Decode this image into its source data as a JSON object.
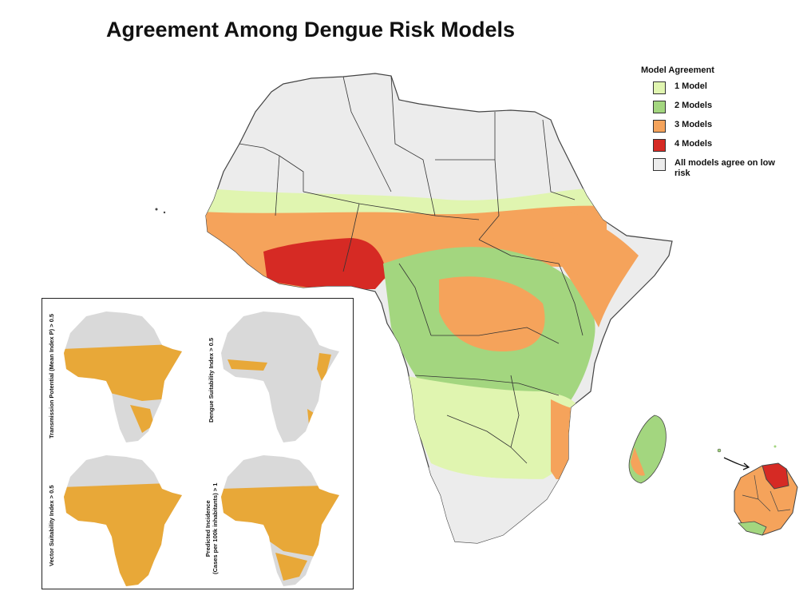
{
  "title": "Agreement Among Dengue Risk Models",
  "legend": {
    "title": "Model Agreement",
    "items": [
      {
        "label": "1 Model",
        "color": "#e0f5b0"
      },
      {
        "label": "2 Models",
        "color": "#a3d67f"
      },
      {
        "label": "3 Models",
        "color": "#f5a35b"
      },
      {
        "label": "4 Models",
        "color": "#d62a24"
      },
      {
        "label": "All models agree on low risk",
        "color": "#ececec"
      }
    ]
  },
  "inset": {
    "panels": [
      {
        "label": "Transmission Potential (Mean Index P) > 0.5"
      },
      {
        "label": "Dengue Suitability Index > 0.5"
      },
      {
        "label": "Vector Suitability Index > 0.5"
      },
      {
        "label_line1": "Predicted Incidence",
        "label_line2": "(Cases per 100k inhabitants) > 1"
      }
    ],
    "highlight_color": "#e8a838",
    "base_color": "#d9d9d9"
  },
  "colors": {
    "low_risk": "#ececec",
    "border": "#333333"
  }
}
